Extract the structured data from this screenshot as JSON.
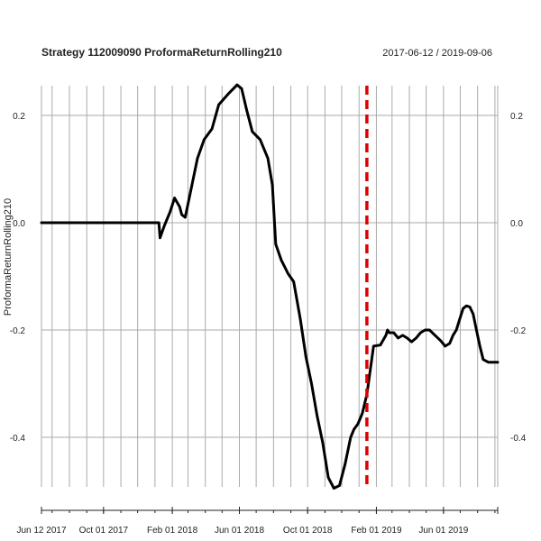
{
  "chart_data": {
    "type": "line",
    "title": "Strategy 112009090 ProformaReturnRolling210",
    "date_range": "2017-06-12 / 2019-09-06",
    "ylabel": "ProformaReturnRolling210",
    "xlabel": "",
    "x_range": [
      "2017-06-12",
      "2019-09-06"
    ],
    "ylim": [
      -0.5,
      0.26
    ],
    "y_ticks": [
      {
        "value": 0.2,
        "label": "0.2"
      },
      {
        "value": 0.0,
        "label": "0.0"
      },
      {
        "value": -0.2,
        "label": "-0.2"
      },
      {
        "value": -0.4,
        "label": "-0.4"
      }
    ],
    "x_ticks": [
      {
        "date": "2017-06-12",
        "label": "Jun 12 2017"
      },
      {
        "date": "2017-10-01",
        "label": "Oct 01 2017"
      },
      {
        "date": "2018-02-01",
        "label": "Feb 01 2018"
      },
      {
        "date": "2018-06-01",
        "label": "Jun 01 2018"
      },
      {
        "date": "2018-10-01",
        "label": "Oct 01 2018"
      },
      {
        "date": "2019-02-01",
        "label": "Feb 01 2019"
      },
      {
        "date": "2019-06-01",
        "label": "Jun 01 2019"
      }
    ],
    "vline_date": "2019-01-15",
    "colors": {
      "series": "#000000",
      "vline": "#dd0000",
      "grid": "#aaaaaa"
    },
    "grid": true,
    "legend": "none",
    "series": [
      {
        "dates": [
          "2017-06-12",
          "2017-09-01",
          "2017-12-01",
          "2018-01-08",
          "2018-01-10",
          "2018-01-18",
          "2018-01-28",
          "2018-02-05",
          "2018-02-14",
          "2018-02-18",
          "2018-02-24",
          "2018-03-06",
          "2018-03-18",
          "2018-03-30",
          "2018-04-13",
          "2018-04-25",
          "2018-05-12",
          "2018-05-28",
          "2018-06-05",
          "2018-06-14",
          "2018-06-24",
          "2018-07-08",
          "2018-07-22",
          "2018-07-30",
          "2018-08-05",
          "2018-08-15",
          "2018-08-27",
          "2018-09-06",
          "2018-09-18",
          "2018-09-28",
          "2018-10-08",
          "2018-10-18",
          "2018-10-28",
          "2018-11-07",
          "2018-11-17",
          "2018-11-27",
          "2018-12-07",
          "2018-12-17",
          "2018-12-23",
          "2018-12-30",
          "2019-01-07",
          "2019-01-15",
          "2019-01-27",
          "2019-02-08",
          "2019-02-18",
          "2019-02-21",
          "2019-02-24",
          "2019-03-04",
          "2019-03-12",
          "2019-03-20",
          "2019-03-28",
          "2019-04-05",
          "2019-04-13",
          "2019-04-21",
          "2019-04-29",
          "2019-05-07",
          "2019-05-17",
          "2019-05-27",
          "2019-06-04",
          "2019-06-12",
          "2019-06-18",
          "2019-06-24",
          "2019-06-30",
          "2019-07-06",
          "2019-07-12",
          "2019-07-18",
          "2019-07-24",
          "2019-07-30",
          "2019-08-05",
          "2019-08-11",
          "2019-08-20",
          "2019-08-29",
          "2019-09-06"
        ],
        "values": [
          0.0,
          0.0,
          0.0,
          0.0,
          -0.028,
          -0.005,
          0.02,
          0.046,
          0.03,
          0.015,
          0.01,
          0.06,
          0.12,
          0.155,
          0.175,
          0.22,
          0.24,
          0.257,
          0.25,
          0.21,
          0.17,
          0.155,
          0.12,
          0.07,
          -0.04,
          -0.07,
          -0.095,
          -0.11,
          -0.18,
          -0.25,
          -0.3,
          -0.36,
          -0.41,
          -0.475,
          -0.495,
          -0.49,
          -0.45,
          -0.4,
          -0.385,
          -0.375,
          -0.355,
          -0.32,
          -0.23,
          -0.228,
          -0.21,
          -0.2,
          -0.205,
          -0.205,
          -0.215,
          -0.21,
          -0.215,
          -0.222,
          -0.215,
          -0.205,
          -0.2,
          -0.2,
          -0.21,
          -0.22,
          -0.23,
          -0.225,
          -0.21,
          -0.2,
          -0.18,
          -0.16,
          -0.155,
          -0.157,
          -0.17,
          -0.2,
          -0.23,
          -0.255,
          -0.26,
          -0.26,
          -0.26
        ]
      }
    ]
  }
}
